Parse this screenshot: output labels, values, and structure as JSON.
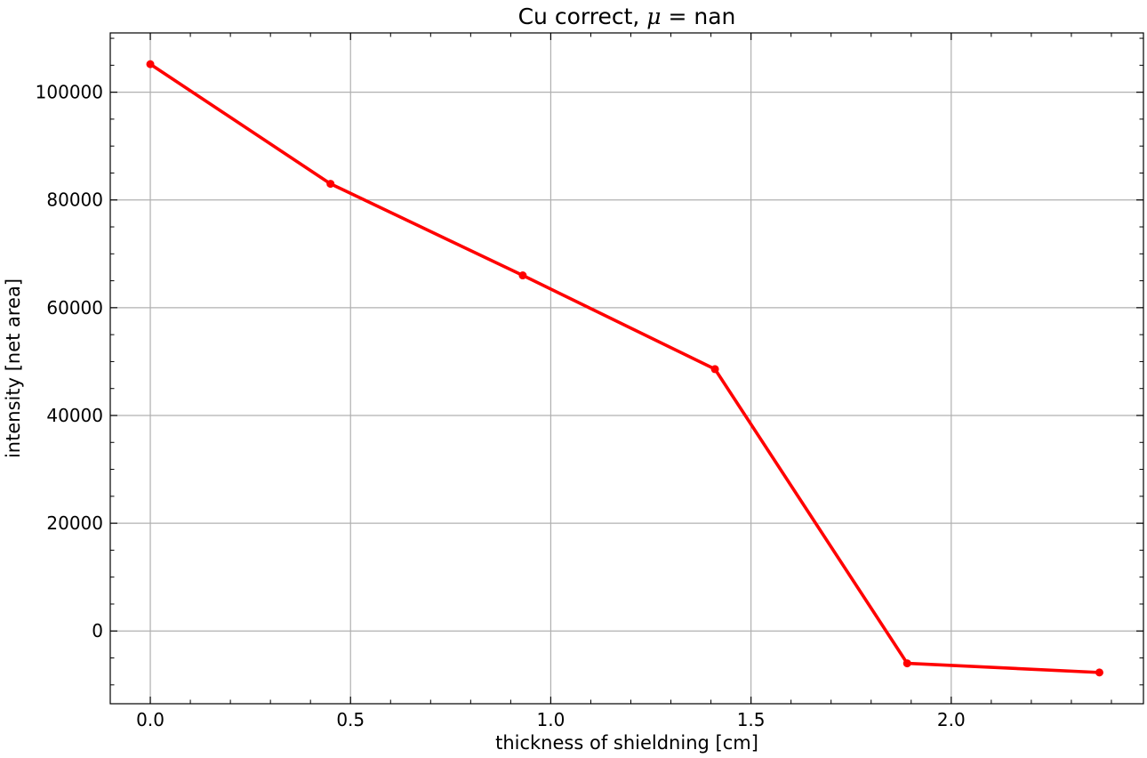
{
  "chart_data": {
    "type": "line",
    "title_prefix": "Cu correct, ",
    "title_symbol": "μ",
    "title_suffix": " = nan",
    "xlabel": "thickness of shieldning [cm]",
    "ylabel": "intensity [net area]",
    "xlim": [
      -0.1,
      2.48
    ],
    "ylim": [
      -13500,
      111000
    ],
    "x_ticks": [
      0.0,
      0.5,
      1.0,
      1.5,
      2.0
    ],
    "x_tick_labels": [
      "0.0",
      "0.5",
      "1.0",
      "1.5",
      "2.0"
    ],
    "y_ticks": [
      0,
      20000,
      40000,
      60000,
      80000,
      100000
    ],
    "y_tick_labels": [
      "0",
      "20000",
      "40000",
      "60000",
      "80000",
      "100000"
    ],
    "x_minor_step": 0.1,
    "y_minor_step": 5000,
    "grid": true,
    "series": [
      {
        "color": "#ff0000",
        "x": [
          0.0,
          0.45,
          0.93,
          1.41,
          1.89,
          2.37
        ],
        "y": [
          105200,
          83000,
          66000,
          48600,
          -6000,
          -7700
        ]
      }
    ]
  }
}
